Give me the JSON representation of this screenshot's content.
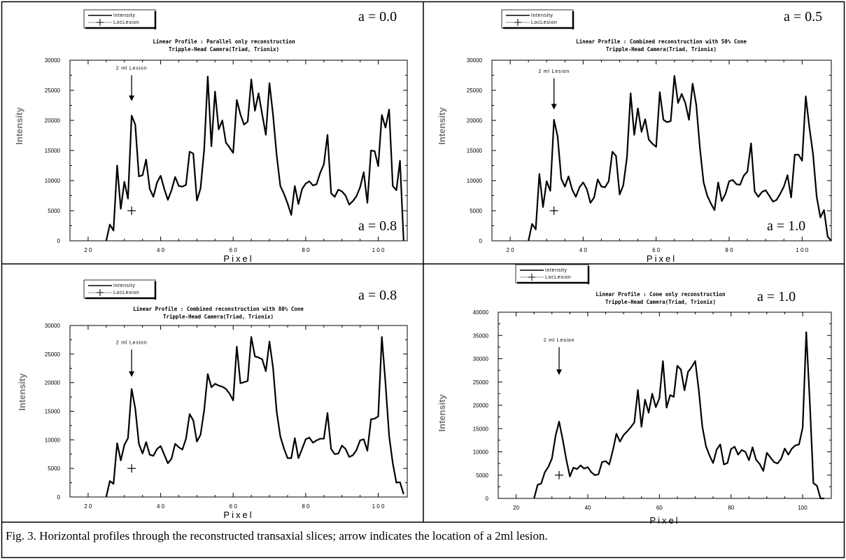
{
  "caption": "Fig. 3. Horizontal profiles through the reconstructed transaxial slices; arrow indicates the location of a 2ml lesion.",
  "chart_data": [
    {
      "type": "line",
      "title": "Linear Profile : Parallel only reconstruction",
      "subtitle": "Tripple-Head Camera(Triad, Trionix)",
      "xlabel": "Pixel",
      "ylabel": "Intensity",
      "xticks": [
        "2 0",
        "4 0",
        "6 0",
        "8 0",
        "1 0 0"
      ],
      "yticks": [
        "0",
        "5000",
        "10000",
        "15000",
        "20000",
        "25000",
        "30000"
      ],
      "xlim": [
        15,
        108
      ],
      "ylim": [
        0,
        30000
      ],
      "legend": [
        "Intensity",
        "LocLesion"
      ],
      "legend_position": "top-left",
      "corner_labels": [
        "a = 0.0",
        "a = 0.8"
      ],
      "annotation": "2 ml Lesion",
      "lesion_marker": {
        "x": 32,
        "y": 5000
      },
      "arrow": {
        "x": 32,
        "y_from": 27500,
        "y_to": 23200
      },
      "series": [
        {
          "name": "Intensity",
          "x": [
            25,
            26,
            27,
            28,
            29,
            30,
            31,
            32,
            33,
            34,
            35,
            36,
            37,
            38,
            39,
            40,
            41,
            42,
            43,
            44,
            45,
            46,
            47,
            48,
            49,
            50,
            51,
            52,
            53,
            54,
            55,
            56,
            57,
            58,
            59,
            60,
            61,
            62,
            63,
            64,
            65,
            66,
            67,
            68,
            69,
            70,
            71,
            72,
            73,
            74,
            75,
            76,
            77,
            78,
            79,
            80,
            81,
            82,
            83,
            84,
            85,
            86,
            87,
            88,
            89,
            90,
            91,
            92,
            93,
            94,
            95,
            96,
            97,
            98,
            99,
            100,
            101,
            102,
            103,
            104,
            105,
            106,
            107
          ],
          "y": [
            0,
            2700,
            1700,
            12500,
            5300,
            9800,
            7000,
            20800,
            19300,
            10700,
            10900,
            13500,
            8600,
            7300,
            9700,
            10800,
            8600,
            6800,
            8400,
            10600,
            9100,
            9000,
            9300,
            14800,
            14500,
            6700,
            8700,
            15200,
            27300,
            15700,
            24800,
            18500,
            20000,
            16300,
            15500,
            14600,
            23400,
            21000,
            19300,
            19800,
            26800,
            21600,
            24500,
            21000,
            17600,
            26200,
            20900,
            14200,
            9100,
            7800,
            6200,
            4300,
            9100,
            6100,
            8600,
            9500,
            9900,
            9200,
            9400,
            11300,
            12700,
            17600,
            7900,
            7300,
            8500,
            8200,
            7500,
            6000,
            6600,
            7400,
            8900,
            11400,
            6300,
            15000,
            14900,
            12400,
            20900,
            18800,
            21800,
            9100,
            8400,
            13300,
            0
          ]
        }
      ]
    },
    {
      "type": "line",
      "title": "Linear Profile : Combined reconstruction with 50% Cone",
      "subtitle": "Tripple-Head Camera(Triad, Trionix)",
      "xlabel": "Pixel",
      "ylabel": "Intensity",
      "xticks": [
        "2 0",
        "4 0",
        "6 0",
        "8 0",
        "1 0 0"
      ],
      "yticks": [
        "0",
        "5000",
        "10000",
        "15000",
        "20000",
        "25000",
        "30000"
      ],
      "xlim": [
        15,
        108
      ],
      "ylim": [
        0,
        30000
      ],
      "legend": [
        "Intensity",
        "LocLesion"
      ],
      "legend_position": "top-left",
      "corner_labels": [
        "a = 0.5",
        "a = 1.0"
      ],
      "annotation": "2 ml Lesion",
      "lesion_marker": {
        "x": 32,
        "y": 5000
      },
      "arrow": {
        "x": 32,
        "y_from": 27000,
        "y_to": 21800
      },
      "series": [
        {
          "name": "Intensity",
          "x": [
            25,
            26,
            27,
            28,
            29,
            30,
            31,
            32,
            33,
            34,
            35,
            36,
            37,
            38,
            39,
            40,
            41,
            42,
            43,
            44,
            45,
            46,
            47,
            48,
            49,
            50,
            51,
            52,
            53,
            54,
            55,
            56,
            57,
            58,
            59,
            60,
            61,
            62,
            63,
            64,
            65,
            66,
            67,
            68,
            69,
            70,
            71,
            72,
            73,
            74,
            75,
            76,
            77,
            78,
            79,
            80,
            81,
            82,
            83,
            84,
            85,
            86,
            87,
            88,
            89,
            90,
            91,
            92,
            93,
            94,
            95,
            96,
            97,
            98,
            99,
            100,
            101,
            102,
            103,
            104,
            105,
            106,
            107,
            108
          ],
          "y": [
            0,
            2800,
            1900,
            11100,
            5600,
            9900,
            8300,
            20100,
            17300,
            10300,
            9000,
            10700,
            8500,
            7300,
            8900,
            9700,
            8600,
            6300,
            7200,
            10200,
            9000,
            8900,
            9900,
            14800,
            14100,
            7700,
            9200,
            13900,
            24500,
            17600,
            22000,
            18100,
            20200,
            16800,
            16100,
            15600,
            24700,
            20100,
            19700,
            19900,
            27400,
            22900,
            24400,
            22900,
            20100,
            26100,
            22600,
            15300,
            9700,
            7500,
            6200,
            5100,
            9700,
            6600,
            7800,
            9900,
            10100,
            9400,
            9300,
            10800,
            11500,
            16200,
            8200,
            7300,
            8100,
            8400,
            7500,
            6500,
            6800,
            7800,
            9000,
            10900,
            7200,
            14300,
            14300,
            13300,
            24000,
            18800,
            14400,
            7300,
            3900,
            5100,
            700,
            0
          ]
        }
      ]
    },
    {
      "type": "line",
      "title": "Linear Profile : Combined reconstruction with 80% Cone",
      "subtitle": "Tripple-Head Camera(Triad, Trionix)",
      "xlabel": "Pixel",
      "ylabel": "Intensity",
      "xticks": [
        "2 0",
        "4 0",
        "6 0",
        "8 0",
        "1 0 0"
      ],
      "yticks": [
        "0",
        "5000",
        "10000",
        "15000",
        "20000",
        "25000",
        "30000"
      ],
      "xlim": [
        15,
        108
      ],
      "ylim": [
        0,
        30000
      ],
      "legend": [
        "Intensity",
        "LocLesion"
      ],
      "legend_position": "top-left",
      "corner_labels": [
        "a = 0.8"
      ],
      "annotation": "2 ml Lesion",
      "lesion_marker": {
        "x": 32,
        "y": 5000
      },
      "arrow": {
        "x": 32,
        "y_from": 25800,
        "y_to": 21000
      },
      "series": [
        {
          "name": "Intensity",
          "x": [
            25,
            26,
            27,
            28,
            29,
            30,
            31,
            32,
            33,
            34,
            35,
            36,
            37,
            38,
            39,
            40,
            41,
            42,
            43,
            44,
            45,
            46,
            47,
            48,
            49,
            50,
            51,
            52,
            53,
            54,
            55,
            56,
            57,
            58,
            59,
            60,
            61,
            62,
            63,
            64,
            65,
            66,
            67,
            68,
            69,
            70,
            71,
            72,
            73,
            74,
            75,
            76,
            77,
            78,
            79,
            80,
            81,
            82,
            83,
            84,
            85,
            86,
            87,
            88,
            89,
            90,
            91,
            92,
            93,
            94,
            95,
            96,
            97,
            98,
            99,
            100,
            101,
            102,
            103,
            104,
            105,
            106,
            107
          ],
          "y": [
            0,
            2800,
            2300,
            9400,
            6400,
            9100,
            10300,
            18900,
            15500,
            9300,
            7600,
            9600,
            7400,
            7200,
            8400,
            8900,
            7400,
            5900,
            6700,
            9300,
            8700,
            8300,
            10200,
            14500,
            13400,
            9700,
            10900,
            15200,
            21500,
            19200,
            19800,
            19500,
            19300,
            18900,
            18100,
            16900,
            26300,
            19900,
            20100,
            20300,
            28000,
            24600,
            24400,
            24100,
            22000,
            27200,
            22600,
            14900,
            10600,
            8500,
            6800,
            6800,
            10300,
            6800,
            8400,
            10100,
            10400,
            9500,
            9900,
            10200,
            10200,
            14700,
            8400,
            7500,
            7600,
            9000,
            8400,
            7000,
            7300,
            8200,
            9900,
            10100,
            8100,
            13600,
            13700,
            14100,
            28000,
            19900,
            10700,
            5900,
            2500,
            2600,
            500
          ]
        }
      ]
    },
    {
      "type": "line",
      "title": "Linear Profile : Cone only reconstruction",
      "subtitle": "Tripple-Head Camera(Triad, Trionix)",
      "xlabel": "Pixel",
      "ylabel": "Intensity",
      "xticks": [
        "20",
        "40",
        "60",
        "80",
        "100"
      ],
      "yticks": [
        "0",
        "5000",
        "10000",
        "15000",
        "20000",
        "25000",
        "30000",
        "35000",
        "40000"
      ],
      "xlim": [
        15,
        108
      ],
      "ylim": [
        0,
        40000
      ],
      "legend": [
        "Intensity",
        "LocLesion"
      ],
      "legend_position": "top-left",
      "corner_labels": [
        "a = 1.0"
      ],
      "annotation": "2 ml Lesion",
      "lesion_marker": {
        "x": 32,
        "y": 5000
      },
      "arrow": {
        "x": 32,
        "y_from": 32500,
        "y_to": 26500
      },
      "series": [
        {
          "name": "Intensity",
          "x": [
            25,
            26,
            27,
            28,
            29,
            30,
            31,
            32,
            33,
            34,
            35,
            36,
            37,
            38,
            39,
            40,
            41,
            42,
            43,
            44,
            45,
            46,
            47,
            48,
            49,
            50,
            51,
            52,
            53,
            54,
            55,
            56,
            57,
            58,
            59,
            60,
            61,
            62,
            63,
            64,
            65,
            66,
            67,
            68,
            69,
            70,
            71,
            72,
            73,
            74,
            75,
            76,
            77,
            78,
            79,
            80,
            81,
            82,
            83,
            84,
            85,
            86,
            87,
            88,
            89,
            90,
            91,
            92,
            93,
            94,
            95,
            96,
            97,
            98,
            99,
            100,
            101,
            102,
            103,
            104,
            105,
            106
          ],
          "y": [
            0,
            2900,
            3200,
            5600,
            6800,
            8600,
            13400,
            16500,
            12700,
            8400,
            4700,
            6600,
            6300,
            7100,
            6400,
            6700,
            5600,
            5000,
            5200,
            7800,
            8000,
            7300,
            10300,
            13900,
            12200,
            13600,
            14400,
            15300,
            16300,
            23300,
            15400,
            21200,
            18400,
            22500,
            19600,
            21500,
            29500,
            19500,
            22200,
            21800,
            28500,
            27700,
            23200,
            27200,
            28200,
            29500,
            23300,
            15400,
            11200,
            9200,
            7600,
            10500,
            11600,
            7300,
            7600,
            10600,
            11100,
            9400,
            10400,
            10000,
            8200,
            11000,
            8300,
            7400,
            5900,
            9800,
            8800,
            7800,
            7500,
            8500,
            10700,
            9400,
            10700,
            11400,
            11600,
            15200,
            35700,
            20600,
            3300,
            2700,
            0,
            0
          ]
        }
      ]
    }
  ]
}
